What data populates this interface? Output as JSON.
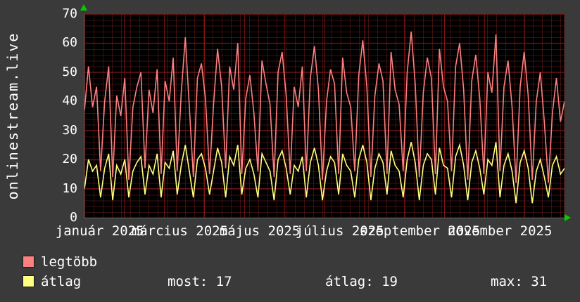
{
  "site_label": "onlinestream.live",
  "colors": {
    "background": "#3a3a3a",
    "plot_background": "#000000",
    "grid_major": "#7a1414",
    "text": "#ffffff",
    "axis_arrow": "#00cc00",
    "legtobb": "#fb8080",
    "atlag": "#ffff80"
  },
  "legend": [
    {
      "label": "legtöbb"
    },
    {
      "label": "átlag"
    }
  ],
  "stats": [
    "most: 17",
    "átlag: 19",
    "max: 31"
  ],
  "chart_data": {
    "type": "line",
    "title": "",
    "xlabel": "",
    "ylabel": "",
    "ylim": [
      0,
      70
    ],
    "yticks": [
      0,
      10,
      20,
      30,
      40,
      50,
      60,
      70
    ],
    "grid": true,
    "legend_position": "bottom-left",
    "xticklabels": [
      "január 2025",
      "március 2025",
      "május 2025",
      "július 2025",
      "szeptember 2025",
      "november 2025"
    ],
    "xtick_month_index": [
      0,
      2,
      4,
      6,
      8,
      10
    ],
    "months_span": 12,
    "series": [
      {
        "name": "legtöbb",
        "color": "#fb8080",
        "values": [
          37,
          52,
          38,
          45,
          16,
          40,
          52,
          14,
          42,
          35,
          48,
          13,
          38,
          45,
          50,
          17,
          44,
          36,
          51,
          15,
          47,
          40,
          55,
          16,
          43,
          62,
          38,
          14,
          48,
          53,
          41,
          15,
          39,
          58,
          45,
          17,
          52,
          44,
          60,
          15,
          41,
          49,
          36,
          16,
          54,
          46,
          39,
          14,
          50,
          57,
          42,
          15,
          45,
          38,
          52,
          16,
          48,
          59,
          44,
          13,
          40,
          51,
          46,
          15,
          55,
          43,
          38,
          16,
          49,
          61,
          45,
          14,
          42,
          53,
          47,
          15,
          57,
          44,
          39,
          16,
          50,
          64,
          46,
          14,
          43,
          55,
          48,
          15,
          58,
          45,
          40,
          16,
          52,
          60,
          44,
          13,
          47,
          56,
          41,
          15,
          50,
          43,
          63,
          16,
          45,
          54,
          38,
          12,
          45,
          57,
          42,
          13,
          40,
          50,
          33,
          12,
          36,
          48,
          33,
          40
        ]
      },
      {
        "name": "átlag",
        "color": "#ffff80",
        "values": [
          10,
          20,
          16,
          18,
          7,
          17,
          22,
          6,
          18,
          15,
          20,
          7,
          16,
          19,
          21,
          8,
          18,
          15,
          22,
          7,
          19,
          17,
          23,
          8,
          18,
          25,
          16,
          7,
          20,
          22,
          17,
          8,
          16,
          24,
          19,
          7,
          21,
          18,
          25,
          8,
          17,
          20,
          15,
          7,
          22,
          19,
          16,
          6,
          20,
          23,
          17,
          8,
          18,
          16,
          21,
          7,
          19,
          24,
          18,
          6,
          16,
          21,
          19,
          8,
          22,
          18,
          16,
          7,
          20,
          25,
          19,
          6,
          17,
          22,
          19,
          8,
          23,
          18,
          16,
          7,
          20,
          26,
          19,
          6,
          18,
          22,
          20,
          8,
          24,
          18,
          17,
          7,
          21,
          25,
          18,
          6,
          19,
          23,
          17,
          8,
          20,
          18,
          26,
          7,
          18,
          22,
          16,
          5,
          19,
          23,
          17,
          5,
          16,
          20,
          14,
          7,
          18,
          21,
          15,
          17
        ]
      }
    ]
  }
}
